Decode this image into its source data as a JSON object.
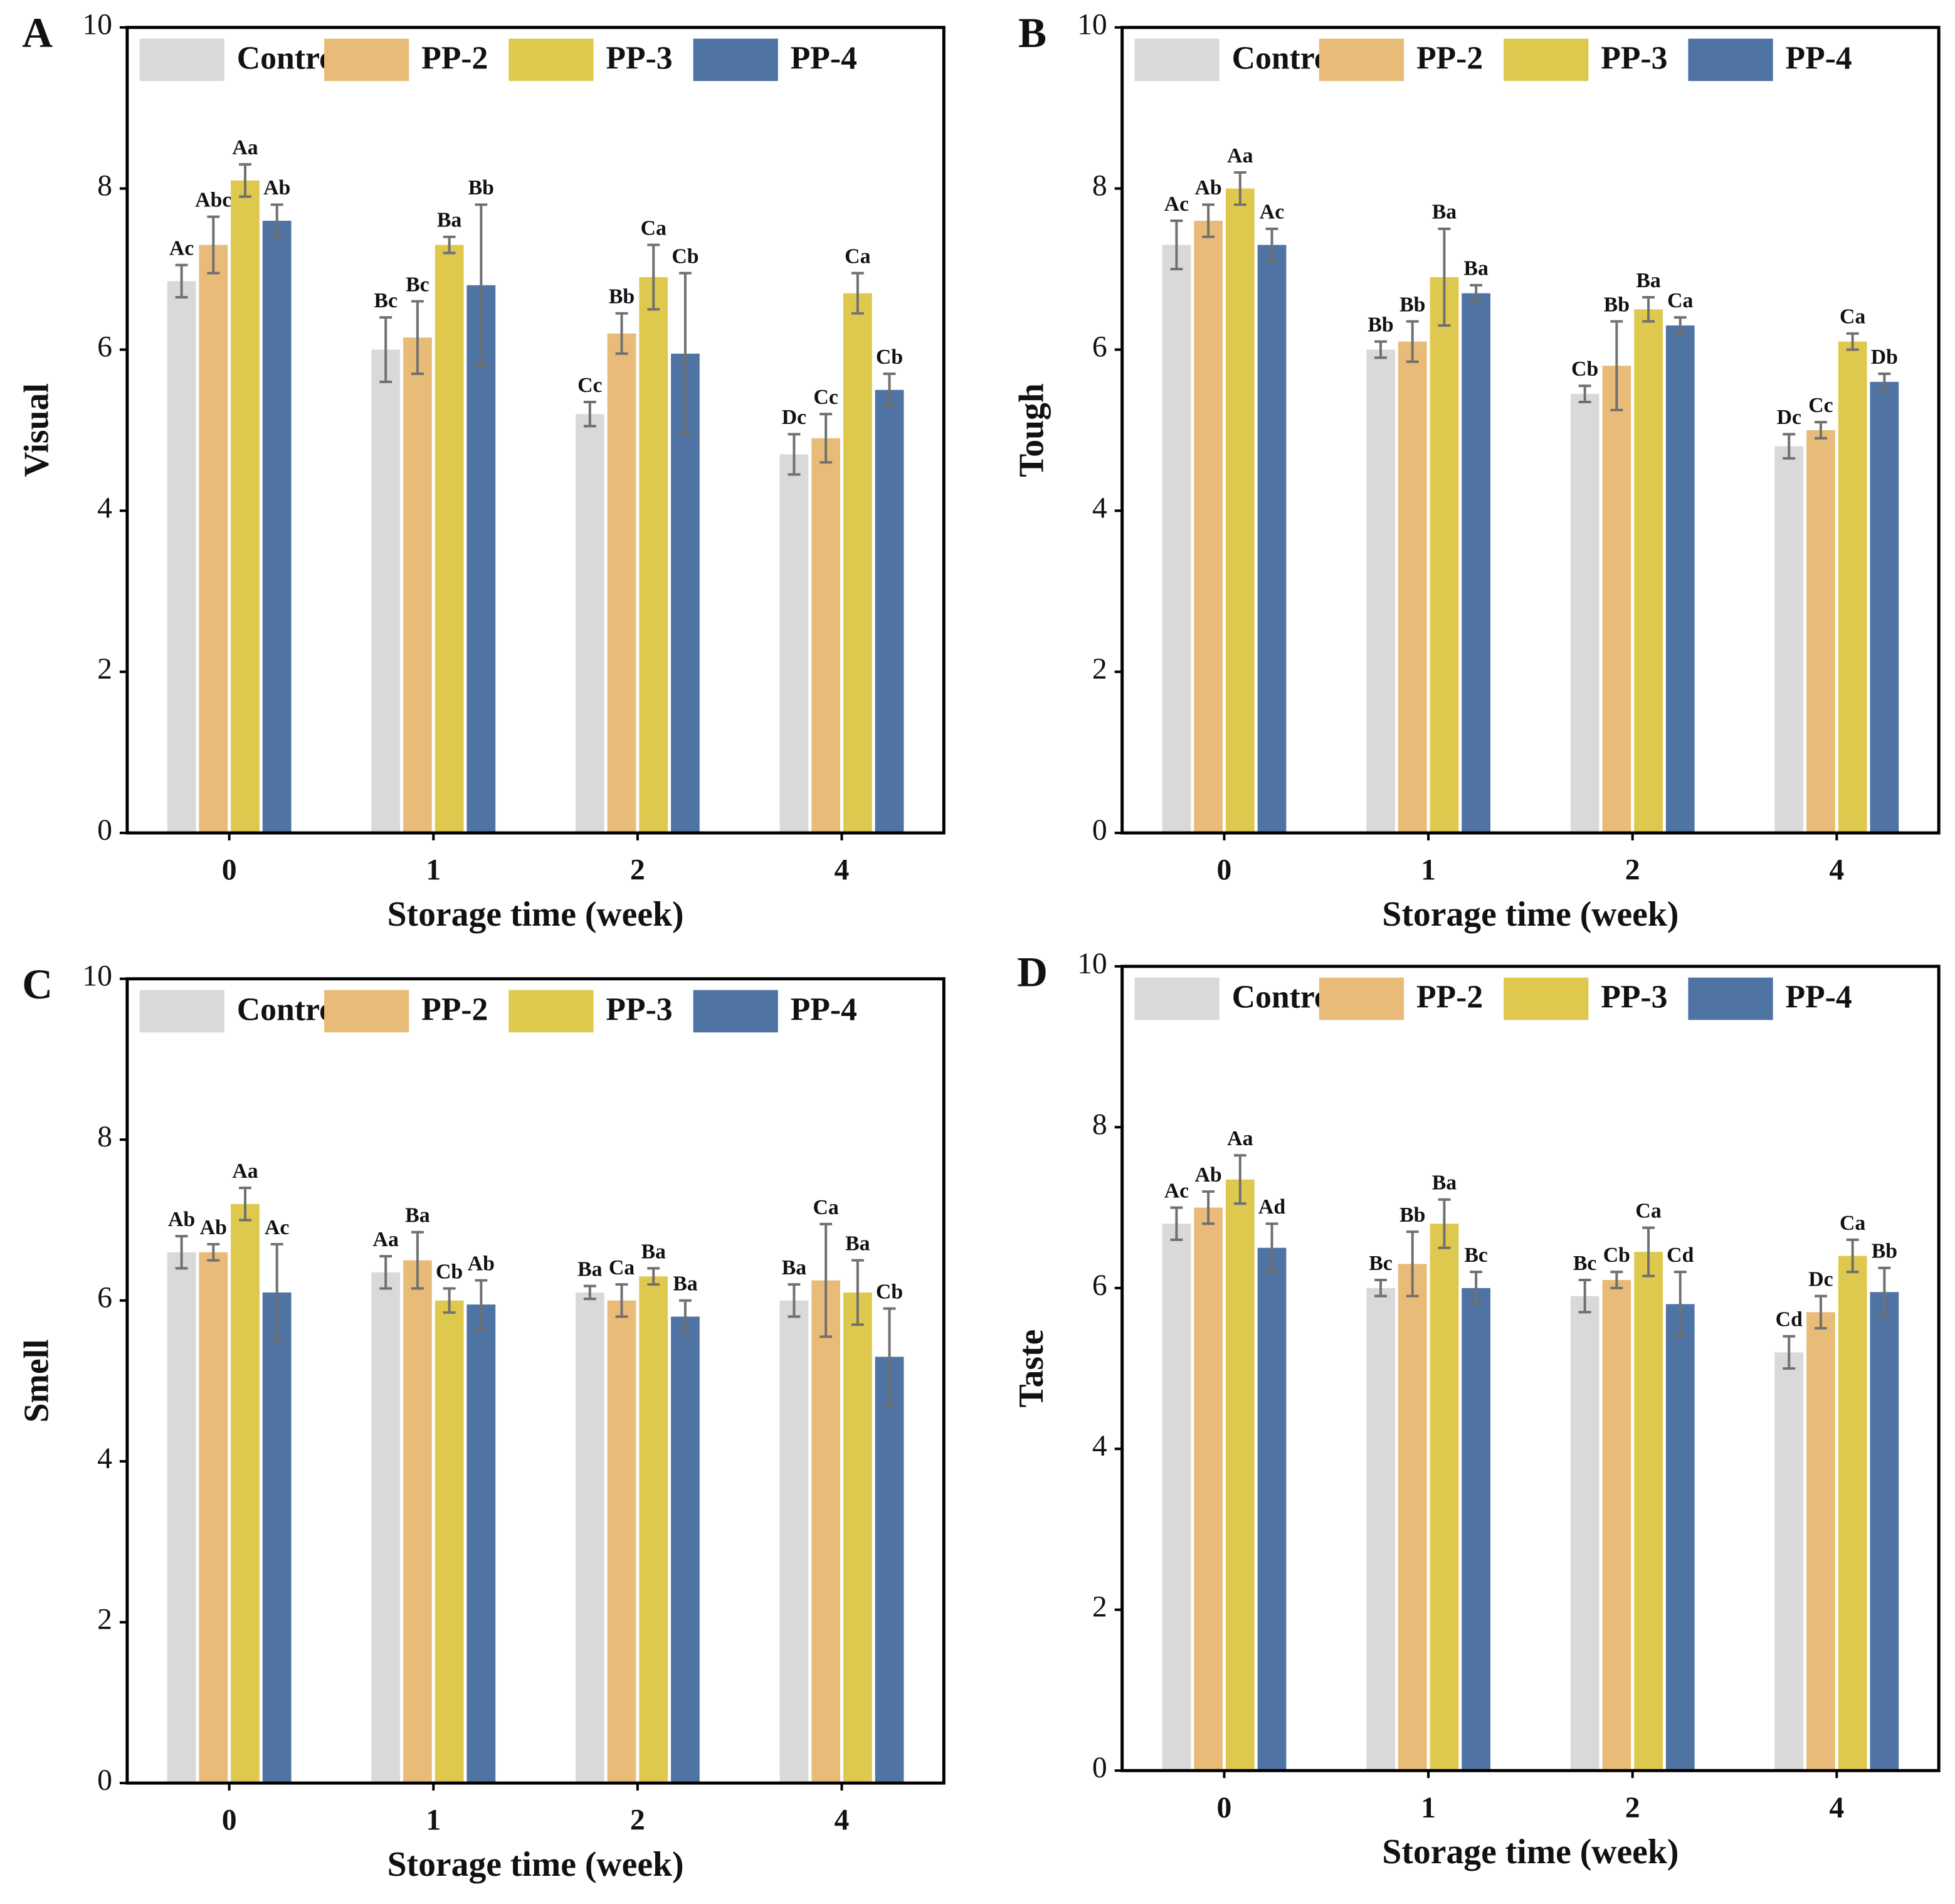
{
  "chart_data": [
    {
      "type": "bar",
      "panel": "A",
      "xlabel": "Storage time (week)",
      "ylabel": "Visual",
      "categories": [
        "0",
        "1",
        "2",
        "4"
      ],
      "ylim": [
        0,
        10
      ],
      "yticks": [
        0,
        2,
        4,
        6,
        8,
        10
      ],
      "series": [
        {
          "name": "Control",
          "color": "#d9d9d9",
          "values": [
            6.85,
            6.0,
            5.2,
            4.7
          ],
          "errors": [
            0.2,
            0.4,
            0.15,
            0.25
          ],
          "annotations": [
            "Ac",
            "Bc",
            "Cc",
            "Dc"
          ]
        },
        {
          "name": "PP-2",
          "color": "#e8bb78",
          "values": [
            7.3,
            6.15,
            6.2,
            4.9
          ],
          "errors": [
            0.35,
            0.45,
            0.25,
            0.3
          ],
          "annotations": [
            "Abc",
            "Bc",
            "Bb",
            "Cc"
          ]
        },
        {
          "name": "PP-3",
          "color": "#dfc84e",
          "values": [
            8.1,
            7.3,
            6.9,
            6.7
          ],
          "errors": [
            0.2,
            0.1,
            0.4,
            0.25
          ],
          "annotations": [
            "Aa",
            "Ba",
            "Ca",
            "Ca"
          ]
        },
        {
          "name": "PP-4",
          "color": "#4f73a3",
          "values": [
            7.6,
            6.8,
            5.95,
            5.5
          ],
          "errors": [
            0.2,
            1.0,
            1.0,
            0.2
          ],
          "annotations": [
            "Ab",
            "Bb",
            "Cb",
            "Cb"
          ]
        }
      ]
    },
    {
      "type": "bar",
      "panel": "B",
      "xlabel": "Storage time (week)",
      "ylabel": "Tough",
      "categories": [
        "0",
        "1",
        "2",
        "4"
      ],
      "ylim": [
        0,
        10
      ],
      "yticks": [
        0,
        2,
        4,
        6,
        8,
        10
      ],
      "series": [
        {
          "name": "Control",
          "color": "#d9d9d9",
          "values": [
            7.3,
            6.0,
            5.45,
            4.8
          ],
          "errors": [
            0.3,
            0.1,
            0.1,
            0.15
          ],
          "annotations": [
            "Ac",
            "Bb",
            "Cb",
            "Dc"
          ]
        },
        {
          "name": "PP-2",
          "color": "#e8bb78",
          "values": [
            7.6,
            6.1,
            5.8,
            5.0
          ],
          "errors": [
            0.2,
            0.25,
            0.55,
            0.1
          ],
          "annotations": [
            "Ab",
            "Bb",
            "Bb",
            "Cc"
          ]
        },
        {
          "name": "PP-3",
          "color": "#dfc84e",
          "values": [
            8.0,
            6.9,
            6.5,
            6.1
          ],
          "errors": [
            0.2,
            0.6,
            0.15,
            0.1
          ],
          "annotations": [
            "Aa",
            "Ba",
            "Ba",
            "Ca"
          ]
        },
        {
          "name": "PP-4",
          "color": "#4f73a3",
          "values": [
            7.3,
            6.7,
            6.3,
            5.6
          ],
          "errors": [
            0.2,
            0.1,
            0.1,
            0.1
          ],
          "annotations": [
            "Ac",
            "Ba",
            "Ca",
            "Db"
          ]
        }
      ]
    },
    {
      "type": "bar",
      "panel": "C",
      "xlabel": "Storage time (week)",
      "ylabel": "Smell",
      "categories": [
        "0",
        "1",
        "2",
        "4"
      ],
      "ylim": [
        0,
        10
      ],
      "yticks": [
        0,
        2,
        4,
        6,
        8,
        10
      ],
      "series": [
        {
          "name": "Control",
          "color": "#d9d9d9",
          "values": [
            6.6,
            6.35,
            6.1,
            6.0
          ],
          "errors": [
            0.2,
            0.2,
            0.08,
            0.2
          ],
          "annotations": [
            "Ab",
            "Aa",
            "Ba",
            "Ba"
          ]
        },
        {
          "name": "PP-2",
          "color": "#e8bb78",
          "values": [
            6.6,
            6.5,
            6.0,
            6.25
          ],
          "errors": [
            0.1,
            0.35,
            0.2,
            0.7
          ],
          "annotations": [
            "Ab",
            "Ba",
            "Ca",
            "Ca"
          ]
        },
        {
          "name": "PP-3",
          "color": "#dfc84e",
          "values": [
            7.2,
            6.0,
            6.3,
            6.1
          ],
          "errors": [
            0.2,
            0.15,
            0.1,
            0.4
          ],
          "annotations": [
            "Aa",
            "Cb",
            "Ba",
            "Ba"
          ]
        },
        {
          "name": "PP-4",
          "color": "#4f73a3",
          "values": [
            6.1,
            5.95,
            5.8,
            5.3
          ],
          "errors": [
            0.6,
            0.3,
            0.2,
            0.6
          ],
          "annotations": [
            "Ac",
            "Ab",
            "Ba",
            "Cb"
          ]
        }
      ]
    },
    {
      "type": "bar",
      "panel": "D",
      "xlabel": "Storage time (week)",
      "ylabel": "Taste",
      "categories": [
        "0",
        "1",
        "2",
        "4"
      ],
      "ylim": [
        0,
        10
      ],
      "yticks": [
        0,
        2,
        4,
        6,
        8,
        10
      ],
      "series": [
        {
          "name": "Control",
          "color": "#d9d9d9",
          "values": [
            6.8,
            6.0,
            5.9,
            5.2
          ],
          "errors": [
            0.2,
            0.1,
            0.2,
            0.2
          ],
          "annotations": [
            "Ac",
            "Bc",
            "Bc",
            "Cd"
          ]
        },
        {
          "name": "PP-2",
          "color": "#e8bb78",
          "values": [
            7.0,
            6.3,
            6.1,
            5.7
          ],
          "errors": [
            0.2,
            0.4,
            0.1,
            0.2
          ],
          "annotations": [
            "Ab",
            "Bb",
            "Cb",
            "Dc"
          ]
        },
        {
          "name": "PP-3",
          "color": "#dfc84e",
          "values": [
            7.35,
            6.8,
            6.45,
            6.4
          ],
          "errors": [
            0.3,
            0.3,
            0.3,
            0.2
          ],
          "annotations": [
            "Aa",
            "Ba",
            "Ca",
            "Ca"
          ]
        },
        {
          "name": "PP-4",
          "color": "#4f73a3",
          "values": [
            6.5,
            6.0,
            5.8,
            5.95
          ],
          "errors": [
            0.3,
            0.2,
            0.4,
            0.3
          ],
          "annotations": [
            "Ad",
            "Bc",
            "Cd",
            "Bb"
          ]
        }
      ]
    }
  ]
}
